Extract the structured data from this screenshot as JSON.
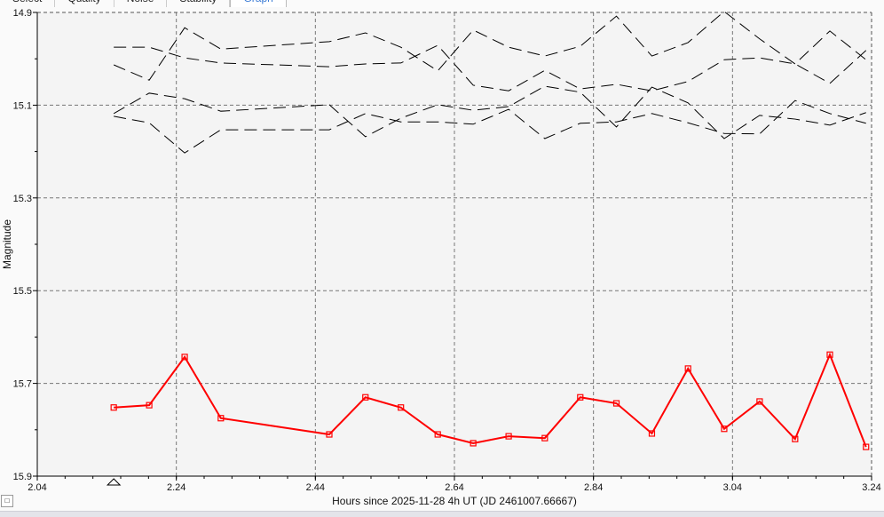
{
  "tabs": [
    {
      "label": "Select"
    },
    {
      "label": "Quality"
    },
    {
      "label": "Noise"
    },
    {
      "label": "Stability"
    },
    {
      "label": "Graph",
      "active": true
    }
  ],
  "mini_button_label": "□",
  "chart_data": {
    "type": "line",
    "xlabel": "Hours since 2025-11-28 4h UT (JD 2461007.66667)",
    "ylabel": "Magnitude",
    "xlim": [
      2.04,
      3.24
    ],
    "ylim": [
      14.9,
      15.9
    ],
    "y_inverted": true,
    "x_ticks": [
      "2.04",
      "2.24",
      "2.44",
      "2.64",
      "2.84",
      "3.04",
      "3.24"
    ],
    "y_ticks": [
      "14.9",
      "15.1",
      "15.3",
      "15.5",
      "15.7",
      "15.9"
    ],
    "grid": true,
    "x": [
      2.15,
      2.201,
      2.252,
      2.304,
      2.46,
      2.512,
      2.563,
      2.616,
      2.667,
      2.718,
      2.77,
      2.821,
      2.873,
      2.924,
      2.976,
      3.028,
      3.079,
      3.13,
      3.18,
      3.232
    ],
    "series": [
      {
        "role": "target",
        "color": "#ff0000",
        "style": "solid-square-markers",
        "values": [
          15.752,
          15.747,
          15.643,
          15.775,
          15.81,
          15.73,
          15.752,
          15.81,
          15.829,
          15.814,
          15.818,
          15.73,
          15.743,
          15.808,
          15.668,
          15.798,
          15.739,
          15.82,
          15.638,
          15.837
        ]
      },
      {
        "role": "comparison",
        "color": "#000000",
        "style": "dashed",
        "values": [
          15.013,
          15.046,
          14.933,
          14.979,
          14.963,
          14.944,
          14.975,
          15.026,
          14.938,
          14.975,
          14.994,
          14.973,
          14.908,
          14.994,
          14.965,
          14.898,
          14.957,
          15.011,
          14.94,
          15.002
        ]
      },
      {
        "role": "comparison",
        "color": "#000000",
        "style": "dashed",
        "values": [
          14.975,
          14.975,
          14.998,
          15.009,
          15.017,
          15.011,
          15.009,
          14.971,
          15.057,
          15.069,
          15.025,
          15.065,
          15.055,
          15.069,
          15.049,
          15.002,
          14.998,
          15.011,
          15.053,
          14.982
        ]
      },
      {
        "role": "comparison",
        "color": "#000000",
        "style": "dashed",
        "values": [
          15.118,
          15.074,
          15.086,
          15.113,
          15.099,
          15.168,
          15.128,
          15.099,
          15.111,
          15.103,
          15.059,
          15.072,
          15.147,
          15.061,
          15.095,
          15.172,
          15.122,
          15.13,
          15.143,
          15.116
        ]
      },
      {
        "role": "comparison",
        "color": "#000000",
        "style": "dashed",
        "values": [
          15.124,
          15.138,
          15.203,
          15.153,
          15.153,
          15.118,
          15.136,
          15.136,
          15.141,
          15.109,
          15.172,
          15.139,
          15.136,
          15.118,
          15.138,
          15.161,
          15.162,
          15.09,
          15.118,
          15.139
        ]
      }
    ],
    "marker_x": 2.15
  }
}
